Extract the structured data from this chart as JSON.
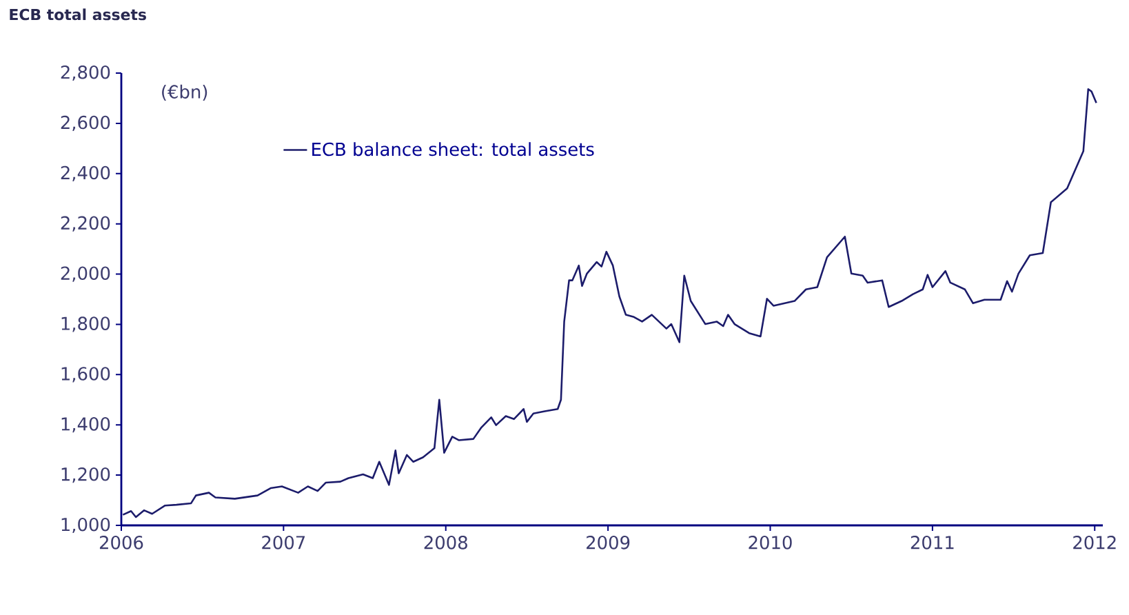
{
  "chart_data": {
    "type": "line",
    "title": "ECB total assets",
    "ylabel": "(€bn)",
    "xlim": [
      2006,
      2012.05
    ],
    "xticks": [
      2006,
      2007,
      2008,
      2009,
      2010,
      2011,
      2012
    ],
    "ylim": [
      1000,
      2800
    ],
    "yticks": [
      {
        "value": 1000,
        "label": "1,000"
      },
      {
        "value": 1200,
        "label": "1,200"
      },
      {
        "value": 1400,
        "label": "1,400"
      },
      {
        "value": 1600,
        "label": "1,600"
      },
      {
        "value": 1800,
        "label": "1,800"
      },
      {
        "value": 2000,
        "label": "2,000"
      },
      {
        "value": 2200,
        "label": "2,200"
      },
      {
        "value": 2400,
        "label": "2,400"
      },
      {
        "value": 2600,
        "label": "2,600"
      },
      {
        "value": 2800,
        "label": "2,800"
      }
    ],
    "grid": false,
    "legend": "top left",
    "marker": "none",
    "line_style": "solid",
    "series": [
      {
        "name": "ECB balance sheet: total assets",
        "color": "#1c1c6b",
        "x": [
          2006.01,
          2006.06,
          2006.09,
          2006.14,
          2006.19,
          2006.27,
          2006.34,
          2006.43,
          2006.46,
          2006.54,
          2006.58,
          2006.7,
          2006.84,
          2006.92,
          2006.99,
          2007.09,
          2007.15,
          2007.21,
          2007.26,
          2007.35,
          2007.4,
          2007.49,
          2007.55,
          2007.59,
          2007.62,
          2007.65,
          2007.69,
          2007.71,
          2007.76,
          2007.8,
          2007.86,
          2007.93,
          2007.96,
          2007.99,
          2008.04,
          2008.08,
          2008.17,
          2008.22,
          2008.28,
          2008.31,
          2008.37,
          2008.42,
          2008.48,
          2008.5,
          2008.54,
          2008.61,
          2008.69,
          2008.71,
          2008.73,
          2008.76,
          2008.78,
          2008.82,
          2008.84,
          2008.87,
          2008.93,
          2008.96,
          2008.99,
          2009.03,
          2009.07,
          2009.11,
          2009.16,
          2009.21,
          2009.27,
          2009.36,
          2009.39,
          2009.44,
          2009.47,
          2009.51,
          2009.6,
          2009.67,
          2009.71,
          2009.74,
          2009.78,
          2009.87,
          2009.94,
          2009.98,
          2010.02,
          2010.15,
          2010.22,
          2010.29,
          2010.35,
          2010.46,
          2010.5,
          2010.57,
          2010.6,
          2010.69,
          2010.73,
          2010.81,
          2010.88,
          2010.94,
          2010.97,
          2011.0,
          2011.08,
          2011.11,
          2011.2,
          2011.25,
          2011.32,
          2011.42,
          2011.46,
          2011.49,
          2011.53,
          2011.6,
          2011.68,
          2011.73,
          2011.83,
          2011.93,
          2011.96,
          2011.98,
          2012.01
        ],
        "values": [
          1042,
          1057,
          1033,
          1060,
          1046,
          1079,
          1082,
          1088,
          1119,
          1130,
          1111,
          1106,
          1119,
          1148,
          1155,
          1130,
          1155,
          1137,
          1170,
          1174,
          1188,
          1203,
          1188,
          1253,
          1207,
          1161,
          1298,
          1207,
          1280,
          1253,
          1271,
          1307,
          1500,
          1289,
          1353,
          1339,
          1344,
          1390,
          1430,
          1399,
          1435,
          1423,
          1463,
          1412,
          1445,
          1454,
          1463,
          1500,
          1811,
          1975,
          1975,
          2034,
          1953,
          2002,
          2048,
          2030,
          2089,
          2034,
          1911,
          1838,
          1829,
          1811,
          1838,
          1783,
          1801,
          1729,
          1994,
          1893,
          1801,
          1811,
          1793,
          1838,
          1801,
          1765,
          1752,
          1902,
          1874,
          1893,
          1939,
          1948,
          2067,
          2149,
          2002,
          1994,
          1966,
          1975,
          1869,
          1893,
          1920,
          1939,
          1997,
          1948,
          2012,
          1966,
          1939,
          1884,
          1898,
          1898,
          1972,
          1930,
          2002,
          2075,
          2084,
          2286,
          2341,
          2489,
          2736,
          2727,
          2681
        ]
      }
    ]
  }
}
